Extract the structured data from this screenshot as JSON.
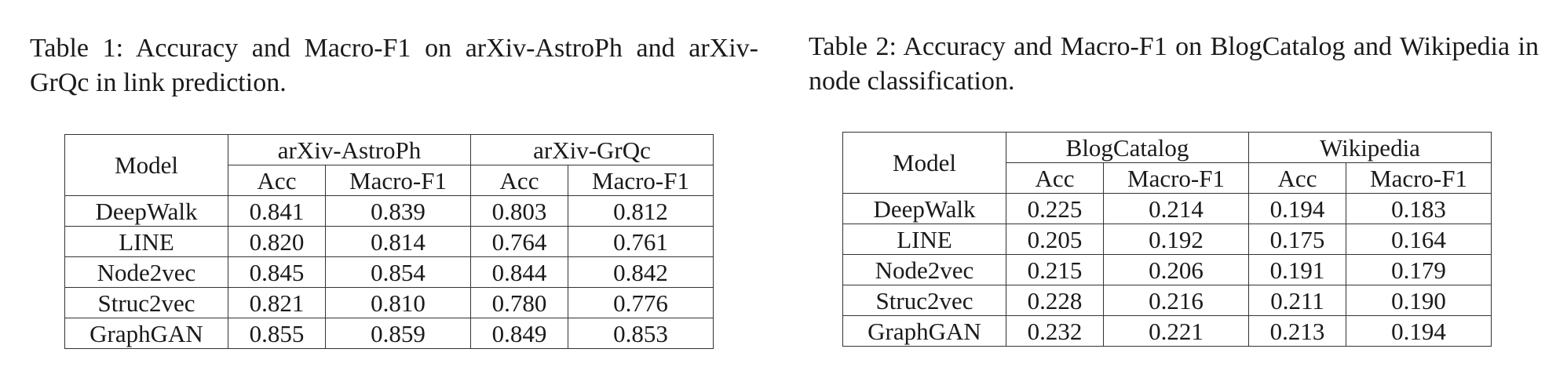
{
  "tables": [
    {
      "caption": "Table 1: Accuracy and Macro-F1 on arXiv-AstroPh and arXiv-GrQc in link prediction.",
      "model_header": "Model",
      "groups": [
        "arXiv-AstroPh",
        "arXiv-GrQc"
      ],
      "subheaders": [
        "Acc",
        "Macro-F1",
        "Acc",
        "Macro-F1"
      ],
      "rows": [
        {
          "model": "DeepWalk",
          "values": [
            "0.841",
            "0.839",
            "0.803",
            "0.812"
          ]
        },
        {
          "model": "LINE",
          "values": [
            "0.820",
            "0.814",
            "0.764",
            "0.761"
          ]
        },
        {
          "model": "Node2vec",
          "values": [
            "0.845",
            "0.854",
            "0.844",
            "0.842"
          ]
        },
        {
          "model": "Struc2vec",
          "values": [
            "0.821",
            "0.810",
            "0.780",
            "0.776"
          ]
        },
        {
          "model": "GraphGAN",
          "values": [
            "0.855",
            "0.859",
            "0.849",
            "0.853"
          ],
          "bold": true
        }
      ]
    },
    {
      "caption": "Table 2: Accuracy and Macro-F1 on BlogCatalog and Wikipedia in node classification.",
      "model_header": "Model",
      "groups": [
        "BlogCatalog",
        "Wikipedia"
      ],
      "subheaders": [
        "Acc",
        "Macro-F1",
        "Acc",
        "Macro-F1"
      ],
      "rows": [
        {
          "model": "DeepWalk",
          "values": [
            "0.225",
            "0.214",
            "0.194",
            "0.183"
          ]
        },
        {
          "model": "LINE",
          "values": [
            "0.205",
            "0.192",
            "0.175",
            "0.164"
          ]
        },
        {
          "model": "Node2vec",
          "values": [
            "0.215",
            "0.206",
            "0.191",
            "0.179"
          ]
        },
        {
          "model": "Struc2vec",
          "values": [
            "0.228",
            "0.216",
            "0.211",
            "0.190"
          ]
        },
        {
          "model": "GraphGAN",
          "values": [
            "0.232",
            "0.221",
            "0.213",
            "0.194"
          ],
          "bold": true
        }
      ]
    }
  ]
}
